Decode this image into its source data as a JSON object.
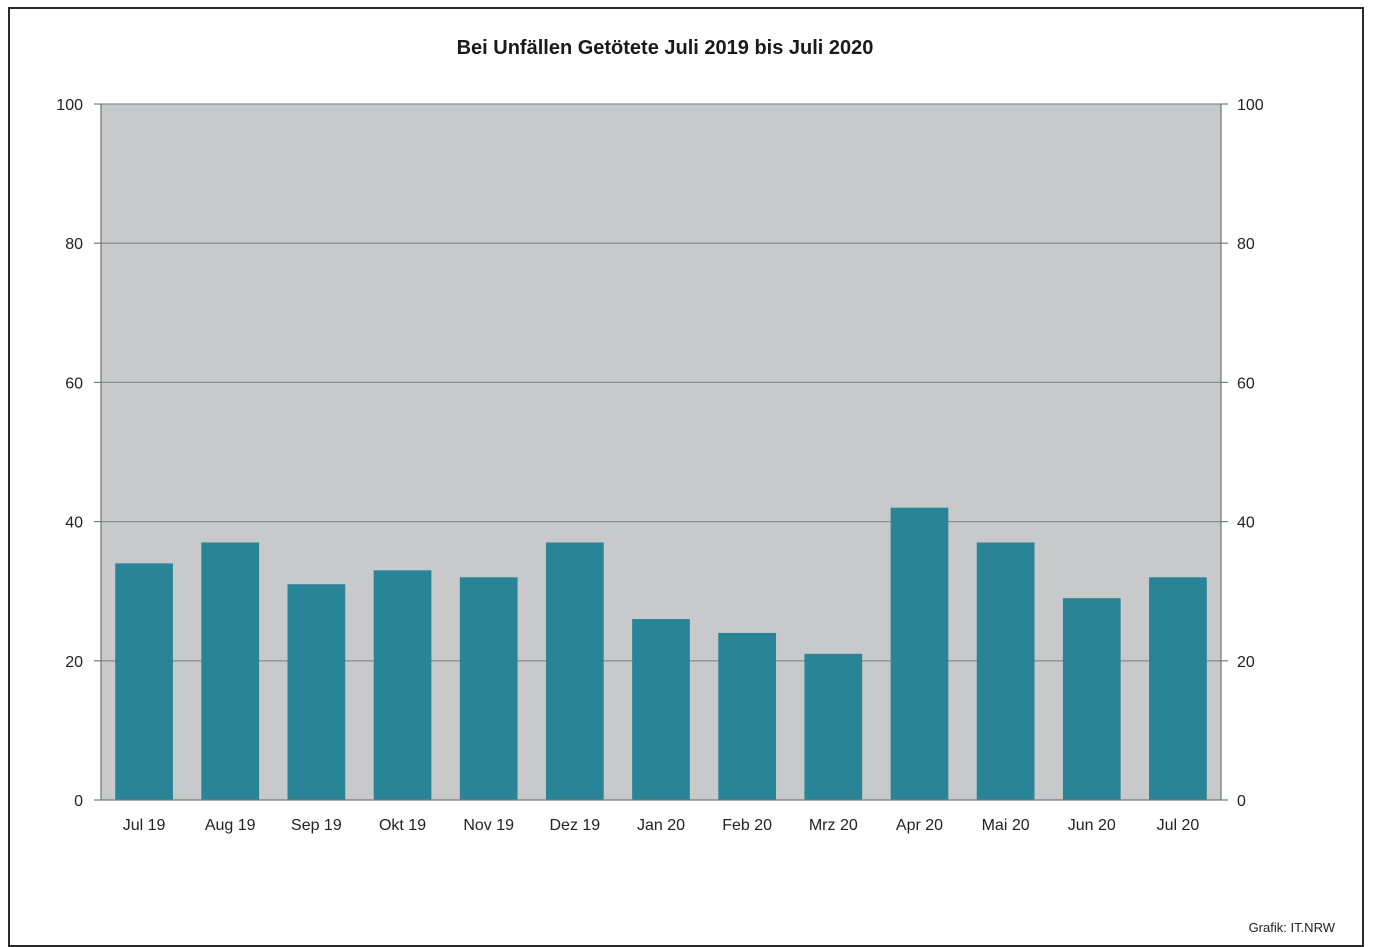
{
  "chart_data": {
    "type": "bar",
    "title": "Bei Unfällen Getötete Juli 2019 bis Juli 2020",
    "xlabel": "",
    "ylabel": "",
    "categories": [
      "Jul 19",
      "Aug 19",
      "Sep 19",
      "Okt 19",
      "Nov 19",
      "Dez 19",
      "Jan 20",
      "Feb 20",
      "Mrz 20",
      "Apr 20",
      "Mai 20",
      "Jun 20",
      "Jul 20"
    ],
    "values": [
      34,
      37,
      31,
      33,
      32,
      37,
      26,
      24,
      21,
      42,
      37,
      29,
      32
    ],
    "ylim": [
      0,
      100
    ],
    "yticks": [
      0,
      20,
      40,
      60,
      80,
      100
    ],
    "grid": true,
    "secondary_axis": "right",
    "bar_color": "#2a8498",
    "plot_background": "#c8c9cb"
  },
  "footer": {
    "source": "Grafik: IT.NRW"
  }
}
